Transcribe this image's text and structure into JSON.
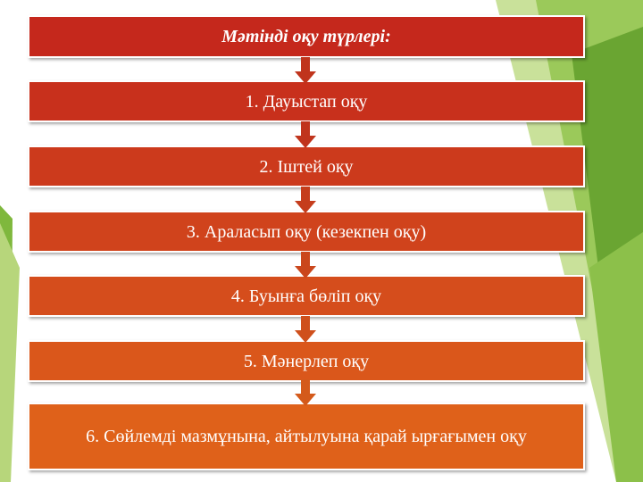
{
  "diagram": {
    "title": "Мәтінді оқу түрлері:",
    "steps": [
      "1. Дауыстап оқу",
      "2. Іштей оқу",
      "3. Араласып оқу (кезекпен оқу)",
      "4. Буынға бөліп оқу",
      "5. Мәнерлеп оқу",
      "6. Сөйлемді мазмұнына, айтылуына қарай ырғағымен оқу"
    ]
  },
  "colors": {
    "title_box": "#c5281c",
    "step_1": "#c8301c",
    "step_2": "#cc3a1c",
    "step_3": "#d0431c",
    "step_4": "#d54d1c",
    "step_5": "#da571b",
    "step_6": "#df611a",
    "arrow": "#c0341c",
    "decor_green_light": "#b7d67b",
    "decor_green_dark": "#5e9a2c",
    "decor_green_mid": "#8cc04a"
  }
}
